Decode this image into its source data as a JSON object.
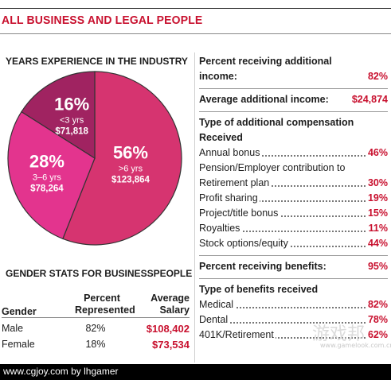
{
  "title": "ALL BUSINESS AND LEGAL PEOPLE",
  "chart_data": {
    "type": "pie",
    "title": "YEARS EXPERIENCE IN THE INDUSTRY",
    "slices": [
      {
        "pct": "56%",
        "value": 56,
        "range": ">6 yrs",
        "salary": "$123,864",
        "color": "#d63470"
      },
      {
        "pct": "28%",
        "value": 28,
        "range": "3–6 yrs",
        "salary": "$78,264",
        "color": "#e3348e"
      },
      {
        "pct": "16%",
        "value": 16,
        "range": "<3 yrs",
        "salary": "$71,818",
        "color": "#a02361"
      }
    ]
  },
  "gender": {
    "title": "GENDER STATS FOR BUSINESSPEOPLE",
    "headers": {
      "gender": "Gender",
      "pct_1": "Percent",
      "pct_2": "Represented",
      "sal_1": "Average",
      "sal_2": "Salary"
    },
    "rows": [
      {
        "gender": "Male",
        "pct": "82%",
        "salary": "$108,402"
      },
      {
        "gender": "Female",
        "pct": "18%",
        "salary": "$73,534"
      }
    ]
  },
  "right": {
    "additional_income": {
      "label_1": "Percent receiving additional",
      "label_2": "income:",
      "value": "82%"
    },
    "avg_additional": {
      "label": "Average additional income:",
      "value": "$24,874"
    },
    "comp_types": {
      "title_1": "Type of additional compensation",
      "title_2": "Received",
      "items": [
        {
          "label": "Annual bonus",
          "value": "46%"
        },
        {
          "label": "Pension/Employer contribution to",
          "value": ""
        },
        {
          "label": "Retirement plan",
          "value": "30%"
        },
        {
          "label": "Profit sharing",
          "value": "19%"
        },
        {
          "label": "Project/title bonus",
          "value": "15%"
        },
        {
          "label": "Royalties",
          "value": "11%"
        },
        {
          "label": "Stock options/equity",
          "value": "44%"
        }
      ]
    },
    "benefits": {
      "label": "Percent receiving benefits:",
      "value": "95%"
    },
    "benefit_types": {
      "title": "Type of benefits received",
      "items": [
        {
          "label": "Medical",
          "value": "82%"
        },
        {
          "label": "Dental",
          "value": "78%"
        },
        {
          "label": "401K/Retirement",
          "value": "62%"
        }
      ]
    }
  },
  "footer": "www.cgjoy.com by lhgamer",
  "watermark": "游戏邦",
  "watermark_sub": "www.gamelook.com.cn"
}
